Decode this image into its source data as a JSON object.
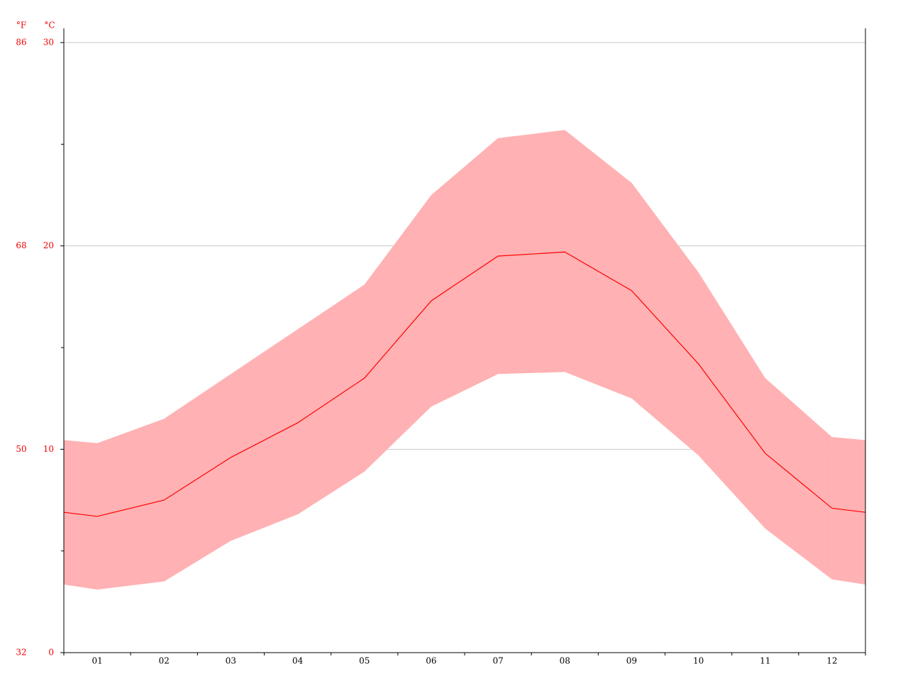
{
  "chart_data": {
    "type": "line",
    "y_unit": "°C",
    "y2_unit": "°F",
    "categories": [
      "01",
      "02",
      "03",
      "04",
      "05",
      "06",
      "07",
      "08",
      "09",
      "10",
      "11",
      "12"
    ],
    "series": [
      {
        "color": "#ff0000",
        "values": [
          6.7,
          7.5,
          9.6,
          11.3,
          13.5,
          17.3,
          19.5,
          19.7,
          17.8,
          14.2,
          9.8,
          7.1
        ]
      }
    ],
    "band": {
      "color": "#ffb1b3",
      "low": [
        3.1,
        3.5,
        5.5,
        6.8,
        8.9,
        12.1,
        13.7,
        13.8,
        12.5,
        9.7,
        6.1,
        3.6
      ],
      "high": [
        10.3,
        11.5,
        13.7,
        15.9,
        18.1,
        22.5,
        25.3,
        25.7,
        23.1,
        18.7,
        13.5,
        10.6
      ]
    },
    "ylim": [
      0,
      30
    ],
    "yticks": [
      0,
      10,
      20,
      30
    ],
    "yminor_ticks": [
      5,
      15,
      25
    ],
    "y2lim": [
      32,
      86
    ],
    "y2ticks": [
      32,
      50,
      68,
      86
    ],
    "grid": true
  }
}
